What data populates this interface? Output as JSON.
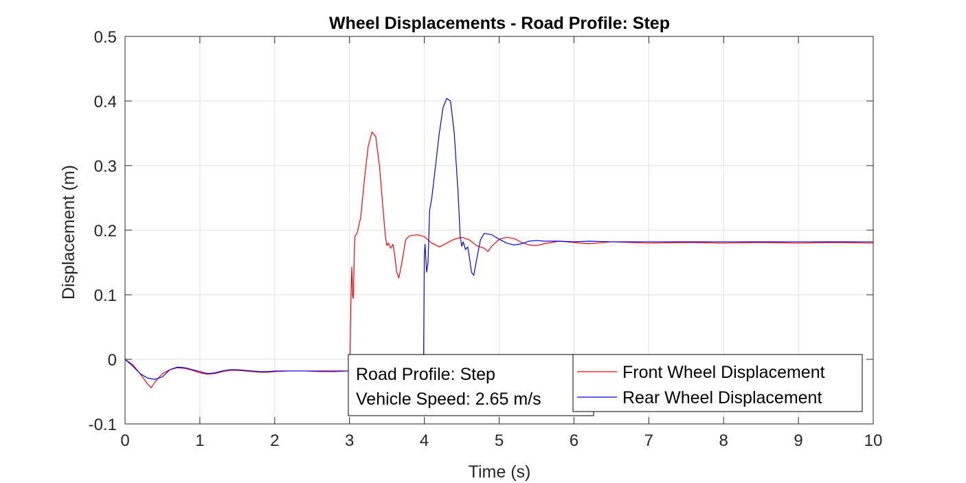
{
  "chart_data": {
    "type": "line",
    "title": "Wheel Displacements - Road Profile: Step",
    "xlabel": "Time (s)",
    "ylabel": "Displacement (m)",
    "xlim": [
      0,
      10
    ],
    "ylim": [
      -0.1,
      0.5
    ],
    "xticks": [
      0,
      1,
      2,
      3,
      4,
      5,
      6,
      7,
      8,
      9,
      10
    ],
    "yticks": [
      -0.1,
      0,
      0.1,
      0.2,
      0.3,
      0.4,
      0.5
    ],
    "xtick_labels": [
      "0",
      "1",
      "2",
      "3",
      "4",
      "5",
      "6",
      "7",
      "8",
      "9",
      "10"
    ],
    "ytick_labels": [
      "-0.1",
      "0",
      "0.1",
      "0.2",
      "0.3",
      "0.4",
      "0.5"
    ],
    "grid": true,
    "legend_position": "bottom-right",
    "annotation": {
      "lines": [
        "Road Profile: Step",
        "Vehicle Speed: 2.65 m/s"
      ]
    },
    "series": [
      {
        "name": "Front Wheel Displacement",
        "color": "#ff0000",
        "x": [
          0,
          0.1,
          0.2,
          0.3,
          0.35,
          0.4,
          0.5,
          0.6,
          0.7,
          0.8,
          0.9,
          1.0,
          1.1,
          1.2,
          1.3,
          1.4,
          1.5,
          1.6,
          1.7,
          1.8,
          1.9,
          2.0,
          2.2,
          2.4,
          2.6,
          2.8,
          2.98,
          3.0,
          3.01,
          3.02,
          3.03,
          3.04,
          3.05,
          3.07,
          3.1,
          3.15,
          3.2,
          3.25,
          3.3,
          3.35,
          3.4,
          3.45,
          3.48,
          3.5,
          3.52,
          3.55,
          3.58,
          3.6,
          3.63,
          3.66,
          3.7,
          3.75,
          3.8,
          3.9,
          4.0,
          4.1,
          4.2,
          4.3,
          4.4,
          4.5,
          4.6,
          4.7,
          4.8,
          4.85,
          4.9,
          5.0,
          5.1,
          5.2,
          5.3,
          5.4,
          5.5,
          5.6,
          5.8,
          6.0,
          6.2,
          6.5,
          7.0,
          7.5,
          8.0,
          8.5,
          9.0,
          9.5,
          10.0
        ],
        "y": [
          0,
          -0.008,
          -0.022,
          -0.038,
          -0.044,
          -0.035,
          -0.022,
          -0.016,
          -0.013,
          -0.014,
          -0.017,
          -0.021,
          -0.023,
          -0.022,
          -0.019,
          -0.017,
          -0.017,
          -0.018,
          -0.019,
          -0.02,
          -0.02,
          -0.019,
          -0.018,
          -0.018,
          -0.019,
          -0.019,
          -0.018,
          -0.018,
          0.02,
          0.1,
          0.143,
          0.1,
          0.094,
          0.19,
          0.195,
          0.22,
          0.28,
          0.33,
          0.352,
          0.345,
          0.3,
          0.23,
          0.19,
          0.176,
          0.18,
          0.172,
          0.178,
          0.165,
          0.135,
          0.126,
          0.15,
          0.185,
          0.191,
          0.193,
          0.19,
          0.18,
          0.174,
          0.18,
          0.186,
          0.189,
          0.185,
          0.176,
          0.172,
          0.167,
          0.175,
          0.186,
          0.189,
          0.187,
          0.181,
          0.177,
          0.176,
          0.179,
          0.183,
          0.181,
          0.179,
          0.182,
          0.18,
          0.181,
          0.18,
          0.181,
          0.18,
          0.181,
          0.18
        ]
      },
      {
        "name": "Rear Wheel Displacement",
        "color": "#0000ff",
        "x": [
          0,
          0.1,
          0.2,
          0.3,
          0.4,
          0.5,
          0.6,
          0.7,
          0.8,
          0.9,
          1.0,
          1.1,
          1.2,
          1.3,
          1.4,
          1.5,
          1.6,
          1.7,
          1.8,
          1.9,
          2.0,
          2.2,
          2.4,
          2.6,
          2.8,
          2.98,
          3.0,
          3.05,
          3.1,
          3.2,
          3.3,
          3.4,
          3.5,
          3.6,
          3.7,
          3.75,
          3.8,
          3.85,
          3.9,
          3.95,
          3.99,
          4.0,
          4.01,
          4.03,
          4.05,
          4.07,
          4.1,
          4.15,
          4.2,
          4.25,
          4.3,
          4.35,
          4.4,
          4.45,
          4.48,
          4.5,
          4.52,
          4.55,
          4.58,
          4.6,
          4.63,
          4.66,
          4.7,
          4.75,
          4.8,
          4.9,
          5.0,
          5.1,
          5.2,
          5.3,
          5.4,
          5.5,
          5.6,
          5.8,
          6.0,
          6.2,
          6.5,
          7.0,
          7.5,
          8.0,
          8.5,
          9.0,
          9.5,
          10.0
        ],
        "y": [
          0,
          -0.01,
          -0.022,
          -0.029,
          -0.031,
          -0.027,
          -0.016,
          -0.012,
          -0.013,
          -0.016,
          -0.019,
          -0.022,
          -0.021,
          -0.018,
          -0.016,
          -0.016,
          -0.017,
          -0.018,
          -0.019,
          -0.019,
          -0.018,
          -0.018,
          -0.018,
          -0.018,
          -0.018,
          -0.018,
          -0.018,
          -0.016,
          -0.013,
          -0.011,
          -0.012,
          -0.016,
          -0.022,
          -0.027,
          -0.029,
          -0.027,
          -0.024,
          -0.02,
          -0.016,
          -0.011,
          -0.008,
          0.16,
          0.178,
          0.135,
          0.15,
          0.23,
          0.25,
          0.3,
          0.35,
          0.39,
          0.404,
          0.4,
          0.35,
          0.26,
          0.19,
          0.175,
          0.182,
          0.17,
          0.174,
          0.16,
          0.135,
          0.13,
          0.155,
          0.185,
          0.195,
          0.193,
          0.186,
          0.18,
          0.177,
          0.179,
          0.183,
          0.184,
          0.183,
          0.183,
          0.182,
          0.183,
          0.182,
          0.182,
          0.182,
          0.182,
          0.182,
          0.182,
          0.182,
          0.182
        ]
      }
    ]
  }
}
